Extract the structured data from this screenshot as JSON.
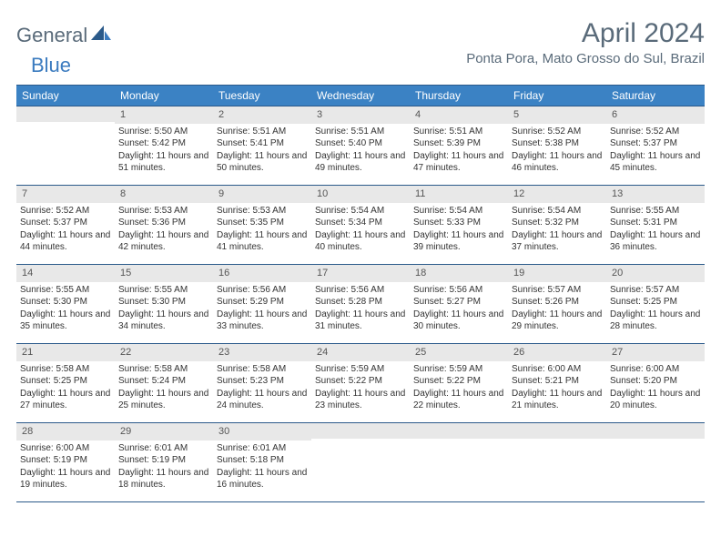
{
  "brand": {
    "first": "General",
    "second": "Blue"
  },
  "title": "April 2024",
  "location": "Ponta Pora, Mato Grosso do Sul, Brazil",
  "colors": {
    "header_bg": "#3b82c4",
    "header_text": "#ffffff",
    "rule": "#2b5a8a",
    "date_bg": "#e8e8e8",
    "body_text": "#333333",
    "title_gray": "#5a6b7a",
    "logo_blue": "#3b7bbf"
  },
  "day_names": [
    "Sunday",
    "Monday",
    "Tuesday",
    "Wednesday",
    "Thursday",
    "Friday",
    "Saturday"
  ],
  "weeks": [
    [
      {
        "date": "",
        "sunrise": "",
        "sunset": "",
        "daylight": ""
      },
      {
        "date": "1",
        "sunrise": "Sunrise: 5:50 AM",
        "sunset": "Sunset: 5:42 PM",
        "daylight": "Daylight: 11 hours and 51 minutes."
      },
      {
        "date": "2",
        "sunrise": "Sunrise: 5:51 AM",
        "sunset": "Sunset: 5:41 PM",
        "daylight": "Daylight: 11 hours and 50 minutes."
      },
      {
        "date": "3",
        "sunrise": "Sunrise: 5:51 AM",
        "sunset": "Sunset: 5:40 PM",
        "daylight": "Daylight: 11 hours and 49 minutes."
      },
      {
        "date": "4",
        "sunrise": "Sunrise: 5:51 AM",
        "sunset": "Sunset: 5:39 PM",
        "daylight": "Daylight: 11 hours and 47 minutes."
      },
      {
        "date": "5",
        "sunrise": "Sunrise: 5:52 AM",
        "sunset": "Sunset: 5:38 PM",
        "daylight": "Daylight: 11 hours and 46 minutes."
      },
      {
        "date": "6",
        "sunrise": "Sunrise: 5:52 AM",
        "sunset": "Sunset: 5:37 PM",
        "daylight": "Daylight: 11 hours and 45 minutes."
      }
    ],
    [
      {
        "date": "7",
        "sunrise": "Sunrise: 5:52 AM",
        "sunset": "Sunset: 5:37 PM",
        "daylight": "Daylight: 11 hours and 44 minutes."
      },
      {
        "date": "8",
        "sunrise": "Sunrise: 5:53 AM",
        "sunset": "Sunset: 5:36 PM",
        "daylight": "Daylight: 11 hours and 42 minutes."
      },
      {
        "date": "9",
        "sunrise": "Sunrise: 5:53 AM",
        "sunset": "Sunset: 5:35 PM",
        "daylight": "Daylight: 11 hours and 41 minutes."
      },
      {
        "date": "10",
        "sunrise": "Sunrise: 5:54 AM",
        "sunset": "Sunset: 5:34 PM",
        "daylight": "Daylight: 11 hours and 40 minutes."
      },
      {
        "date": "11",
        "sunrise": "Sunrise: 5:54 AM",
        "sunset": "Sunset: 5:33 PM",
        "daylight": "Daylight: 11 hours and 39 minutes."
      },
      {
        "date": "12",
        "sunrise": "Sunrise: 5:54 AM",
        "sunset": "Sunset: 5:32 PM",
        "daylight": "Daylight: 11 hours and 37 minutes."
      },
      {
        "date": "13",
        "sunrise": "Sunrise: 5:55 AM",
        "sunset": "Sunset: 5:31 PM",
        "daylight": "Daylight: 11 hours and 36 minutes."
      }
    ],
    [
      {
        "date": "14",
        "sunrise": "Sunrise: 5:55 AM",
        "sunset": "Sunset: 5:30 PM",
        "daylight": "Daylight: 11 hours and 35 minutes."
      },
      {
        "date": "15",
        "sunrise": "Sunrise: 5:55 AM",
        "sunset": "Sunset: 5:30 PM",
        "daylight": "Daylight: 11 hours and 34 minutes."
      },
      {
        "date": "16",
        "sunrise": "Sunrise: 5:56 AM",
        "sunset": "Sunset: 5:29 PM",
        "daylight": "Daylight: 11 hours and 33 minutes."
      },
      {
        "date": "17",
        "sunrise": "Sunrise: 5:56 AM",
        "sunset": "Sunset: 5:28 PM",
        "daylight": "Daylight: 11 hours and 31 minutes."
      },
      {
        "date": "18",
        "sunrise": "Sunrise: 5:56 AM",
        "sunset": "Sunset: 5:27 PM",
        "daylight": "Daylight: 11 hours and 30 minutes."
      },
      {
        "date": "19",
        "sunrise": "Sunrise: 5:57 AM",
        "sunset": "Sunset: 5:26 PM",
        "daylight": "Daylight: 11 hours and 29 minutes."
      },
      {
        "date": "20",
        "sunrise": "Sunrise: 5:57 AM",
        "sunset": "Sunset: 5:25 PM",
        "daylight": "Daylight: 11 hours and 28 minutes."
      }
    ],
    [
      {
        "date": "21",
        "sunrise": "Sunrise: 5:58 AM",
        "sunset": "Sunset: 5:25 PM",
        "daylight": "Daylight: 11 hours and 27 minutes."
      },
      {
        "date": "22",
        "sunrise": "Sunrise: 5:58 AM",
        "sunset": "Sunset: 5:24 PM",
        "daylight": "Daylight: 11 hours and 25 minutes."
      },
      {
        "date": "23",
        "sunrise": "Sunrise: 5:58 AM",
        "sunset": "Sunset: 5:23 PM",
        "daylight": "Daylight: 11 hours and 24 minutes."
      },
      {
        "date": "24",
        "sunrise": "Sunrise: 5:59 AM",
        "sunset": "Sunset: 5:22 PM",
        "daylight": "Daylight: 11 hours and 23 minutes."
      },
      {
        "date": "25",
        "sunrise": "Sunrise: 5:59 AM",
        "sunset": "Sunset: 5:22 PM",
        "daylight": "Daylight: 11 hours and 22 minutes."
      },
      {
        "date": "26",
        "sunrise": "Sunrise: 6:00 AM",
        "sunset": "Sunset: 5:21 PM",
        "daylight": "Daylight: 11 hours and 21 minutes."
      },
      {
        "date": "27",
        "sunrise": "Sunrise: 6:00 AM",
        "sunset": "Sunset: 5:20 PM",
        "daylight": "Daylight: 11 hours and 20 minutes."
      }
    ],
    [
      {
        "date": "28",
        "sunrise": "Sunrise: 6:00 AM",
        "sunset": "Sunset: 5:19 PM",
        "daylight": "Daylight: 11 hours and 19 minutes."
      },
      {
        "date": "29",
        "sunrise": "Sunrise: 6:01 AM",
        "sunset": "Sunset: 5:19 PM",
        "daylight": "Daylight: 11 hours and 18 minutes."
      },
      {
        "date": "30",
        "sunrise": "Sunrise: 6:01 AM",
        "sunset": "Sunset: 5:18 PM",
        "daylight": "Daylight: 11 hours and 16 minutes."
      },
      {
        "date": "",
        "sunrise": "",
        "sunset": "",
        "daylight": ""
      },
      {
        "date": "",
        "sunrise": "",
        "sunset": "",
        "daylight": ""
      },
      {
        "date": "",
        "sunrise": "",
        "sunset": "",
        "daylight": ""
      },
      {
        "date": "",
        "sunrise": "",
        "sunset": "",
        "daylight": ""
      }
    ]
  ]
}
